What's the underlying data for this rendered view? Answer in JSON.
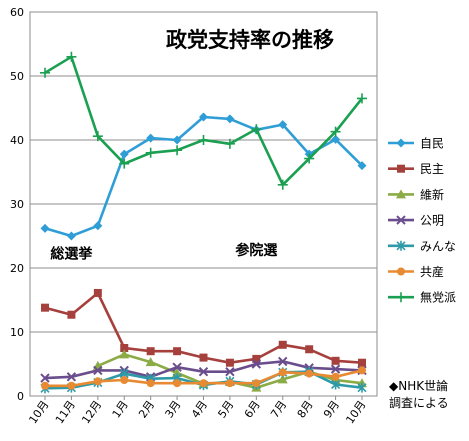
{
  "chart_data": {
    "type": "line",
    "title": "政党支持率の推移",
    "categories": [
      "10月",
      "11月",
      "12月",
      "1月",
      "2月",
      "3月",
      "4月",
      "5月",
      "6月",
      "7月",
      "8月",
      "9月",
      "10月"
    ],
    "ylim": [
      0,
      60
    ],
    "y_ticks": [
      0,
      10,
      20,
      30,
      40,
      50,
      60
    ],
    "grid": "horizontal",
    "legend_position": "right",
    "series": [
      {
        "name": "自民",
        "color": "#2f9ed6",
        "marker": "diamond",
        "values": [
          26.2,
          25.0,
          26.6,
          37.8,
          40.3,
          40.0,
          43.6,
          43.3,
          41.6,
          42.4,
          37.8,
          40.1,
          36.0
        ]
      },
      {
        "name": "民主",
        "color": "#a6403d",
        "marker": "square",
        "values": [
          13.8,
          12.7,
          16.1,
          7.5,
          7.0,
          7.0,
          6.0,
          5.2,
          5.8,
          8.0,
          7.3,
          5.5,
          5.2
        ]
      },
      {
        "name": "維新",
        "color": "#8aab45",
        "marker": "triangle",
        "values": [
          null,
          null,
          4.7,
          6.5,
          5.3,
          3.6,
          1.9,
          2.2,
          1.3,
          2.6,
          3.8,
          2.5,
          2.0
        ]
      },
      {
        "name": "公明",
        "color": "#6a4d8c",
        "marker": "x",
        "values": [
          2.8,
          3.0,
          4.0,
          4.0,
          3.0,
          4.5,
          3.8,
          3.8,
          5.0,
          5.4,
          4.4,
          4.2,
          4.0
        ]
      },
      {
        "name": "みんな",
        "color": "#2e9aa8",
        "marker": "star",
        "values": [
          1.2,
          1.3,
          2.1,
          3.5,
          2.7,
          2.8,
          1.7,
          2.3,
          1.8,
          3.7,
          3.8,
          1.8,
          1.3
        ]
      },
      {
        "name": "共産",
        "color": "#e88a31",
        "marker": "circle",
        "values": [
          1.6,
          1.6,
          2.3,
          2.5,
          2.0,
          2.0,
          2.0,
          2.0,
          2.0,
          3.7,
          3.5,
          3.0,
          4.0
        ]
      },
      {
        "name": "無党派",
        "color": "#1aa050",
        "marker": "plus",
        "values": [
          50.5,
          53.0,
          40.6,
          36.3,
          38.0,
          38.4,
          40.0,
          39.4,
          41.7,
          33.0,
          37.1,
          41.3,
          46.5
        ]
      }
    ],
    "annotations": [
      {
        "text": "総選挙",
        "x": "11月",
        "y": 21.5
      },
      {
        "text": "参院選",
        "x": "6月",
        "y": 22.0
      }
    ]
  },
  "source_note": [
    "◆NHK世論",
    "調査による"
  ]
}
